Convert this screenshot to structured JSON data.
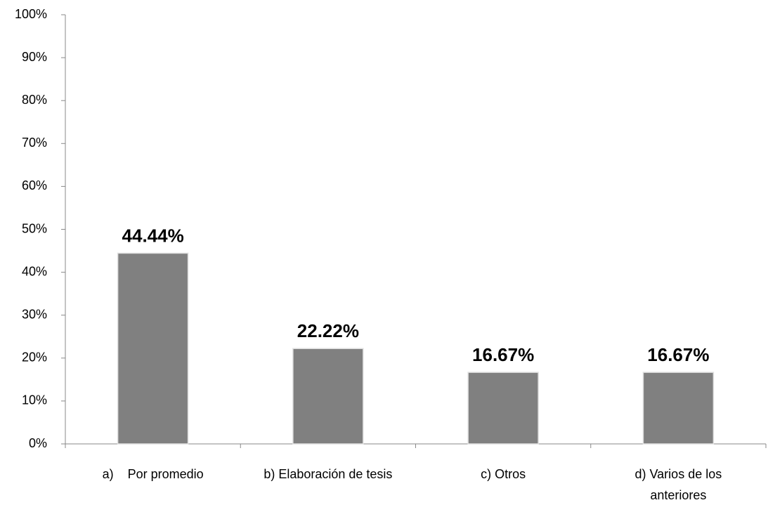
{
  "chart_data": {
    "type": "bar",
    "categories": [
      "a)    Por promedio",
      "b) Elaboración de tesis",
      "c) Otros",
      "d) Varios de los anteriores"
    ],
    "values": [
      44.44,
      22.22,
      16.67,
      16.67
    ],
    "value_labels": [
      "44.44%",
      "22.22%",
      "16.67%",
      "16.67%"
    ],
    "color": "#808080",
    "ylim": [
      0,
      100
    ],
    "yticks": [
      {
        "value": 0,
        "label": "0%"
      },
      {
        "value": 10,
        "label": "10%"
      },
      {
        "value": 20,
        "label": "20%"
      },
      {
        "value": 30,
        "label": "30%"
      },
      {
        "value": 40,
        "label": "40%"
      },
      {
        "value": 50,
        "label": "50%"
      },
      {
        "value": 60,
        "label": "60%"
      },
      {
        "value": 70,
        "label": "70%"
      },
      {
        "value": 80,
        "label": "80%"
      },
      {
        "value": 90,
        "label": "90%"
      },
      {
        "value": 100,
        "label": "100%"
      }
    ],
    "grid": false
  }
}
